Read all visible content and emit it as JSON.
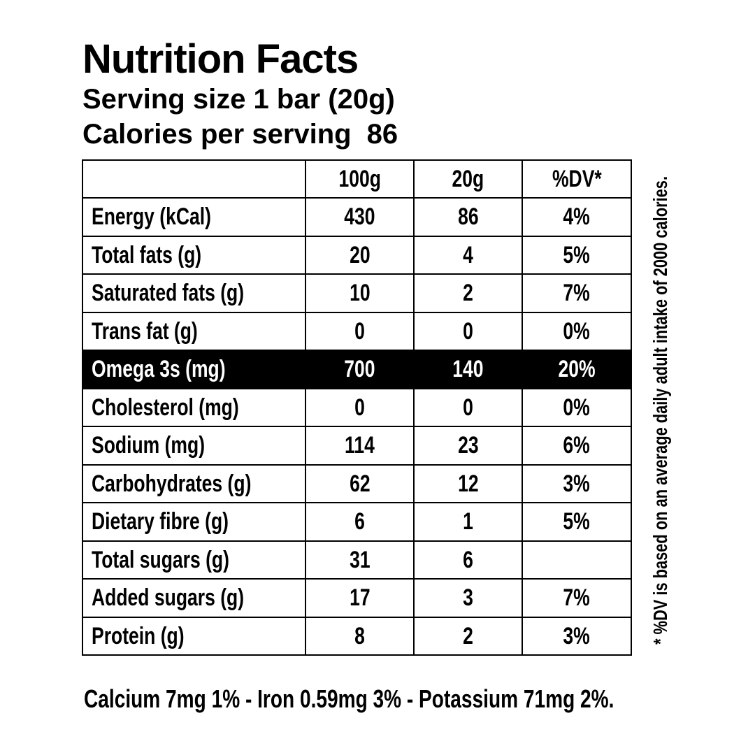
{
  "header": {
    "title": "Nutrition Facts",
    "serving_size": "Serving size 1 bar (20g)",
    "calories_label": "Calories per serving",
    "calories_value": "86"
  },
  "table": {
    "columns": [
      "",
      "100g",
      "20g",
      "%DV*"
    ],
    "rows": [
      {
        "label": "Energy (kCal)",
        "per_100g": "430",
        "per_serving": "86",
        "dv": "4%"
      },
      {
        "label": "Total fats (g)",
        "per_100g": "20",
        "per_serving": "4",
        "dv": "5%"
      },
      {
        "label": "Saturated fats (g)",
        "per_100g": "10",
        "per_serving": "2",
        "dv": "7%"
      },
      {
        "label": "Trans fat (g)",
        "per_100g": "0",
        "per_serving": "0",
        "dv": "0%"
      },
      {
        "label": "Omega 3s (mg)",
        "per_100g": "700",
        "per_serving": "140",
        "dv": "20%",
        "highlighted": true
      },
      {
        "label": "Cholesterol (mg)",
        "per_100g": "0",
        "per_serving": "0",
        "dv": "0%"
      },
      {
        "label": "Sodium (mg)",
        "per_100g": "114",
        "per_serving": "23",
        "dv": "6%"
      },
      {
        "label": "Carbohydrates (g)",
        "per_100g": "62",
        "per_serving": "12",
        "dv": "3%"
      },
      {
        "label": "Dietary fibre (g)",
        "per_100g": "6",
        "per_serving": "1",
        "dv": "5%"
      },
      {
        "label": "Total sugars (g)",
        "per_100g": "31",
        "per_serving": "6",
        "dv": ""
      },
      {
        "label": "Added sugars (g)",
        "per_100g": "17",
        "per_serving": "3",
        "dv": "7%"
      },
      {
        "label": "Protein (g)",
        "per_100g": "8",
        "per_serving": "2",
        "dv": "3%"
      }
    ]
  },
  "footnote": "* %DV is based on an average daily adult intake of 2000 calories.",
  "minerals": "Calcium 7mg 1% - Iron 0.59mg 3% - Potassium 71mg 2%.",
  "colors": {
    "text": "#000000",
    "background": "#ffffff",
    "highlight_row_bg": "#000000",
    "highlight_row_text": "#ffffff"
  }
}
